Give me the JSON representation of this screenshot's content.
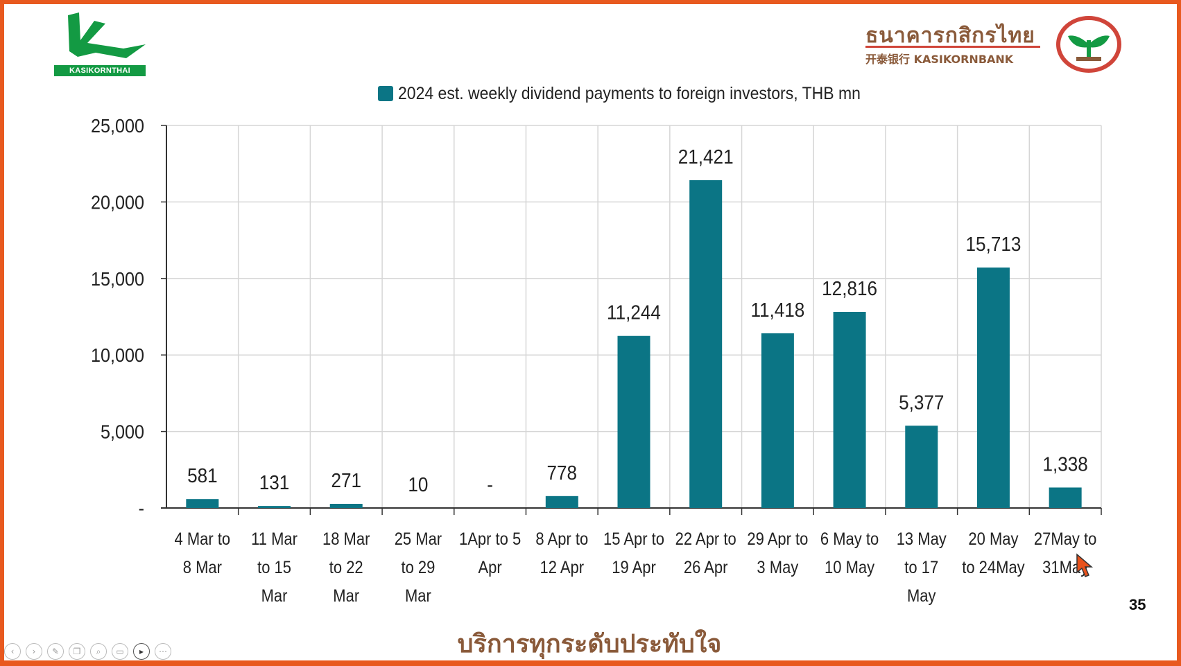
{
  "branding": {
    "left_logo_text": "KASIKORNTHAI",
    "right_logo_thai": "ธนาคารกสิกรไทย",
    "right_logo_english": "开泰银行 KASIKORNBANK"
  },
  "colors": {
    "bar": "#0b7585",
    "frame": "#e8591f",
    "brand_green": "#139a43",
    "brand_brown": "#8a5a3a",
    "seal_red": "#d0453a"
  },
  "chart_data": {
    "type": "bar",
    "legend": "2024 est. weekly dividend payments to foreign investors, THB mn",
    "categories": [
      [
        "4 Mar to",
        "8 Mar"
      ],
      [
        "11 Mar",
        "to 15",
        "Mar"
      ],
      [
        "18 Mar",
        "to 22",
        "Mar"
      ],
      [
        "25 Mar",
        "to 29",
        "Mar"
      ],
      [
        "1Apr to 5",
        "Apr"
      ],
      [
        "8 Apr to",
        "12 Apr"
      ],
      [
        "15 Apr to",
        "19 Apr"
      ],
      [
        "22 Apr to",
        "26 Apr"
      ],
      [
        "29 Apr to",
        "3 May"
      ],
      [
        "6 May to",
        "10 May"
      ],
      [
        "13 May",
        "to 17",
        "May"
      ],
      [
        "20 May",
        "to 24May"
      ],
      [
        "27May to",
        "31May"
      ]
    ],
    "values": [
      581,
      131,
      271,
      10,
      0,
      778,
      11244,
      21421,
      11418,
      12816,
      5377,
      15713,
      1338
    ],
    "data_labels": [
      "581",
      "131",
      "271",
      "10",
      "-",
      "778",
      "11,244",
      "21,421",
      "11,418",
      "12,816",
      "5,377",
      "15,713",
      "1,338"
    ],
    "y_ticks": [
      0,
      5000,
      10000,
      15000,
      20000,
      25000
    ],
    "y_tick_labels": [
      "-",
      "5,000",
      "10,000",
      "15,000",
      "20,000",
      "25,000"
    ],
    "ylim": [
      0,
      25000
    ],
    "grid": true,
    "legend_position": "top"
  },
  "page_number": "35",
  "footer_slogan": "บริการทุกระดับประทับใจ",
  "toolbar_icons": [
    "back-icon",
    "forward-icon",
    "pen-icon",
    "copy-icon",
    "zoom-icon",
    "subtitles-icon",
    "camera-icon",
    "more-icon"
  ]
}
